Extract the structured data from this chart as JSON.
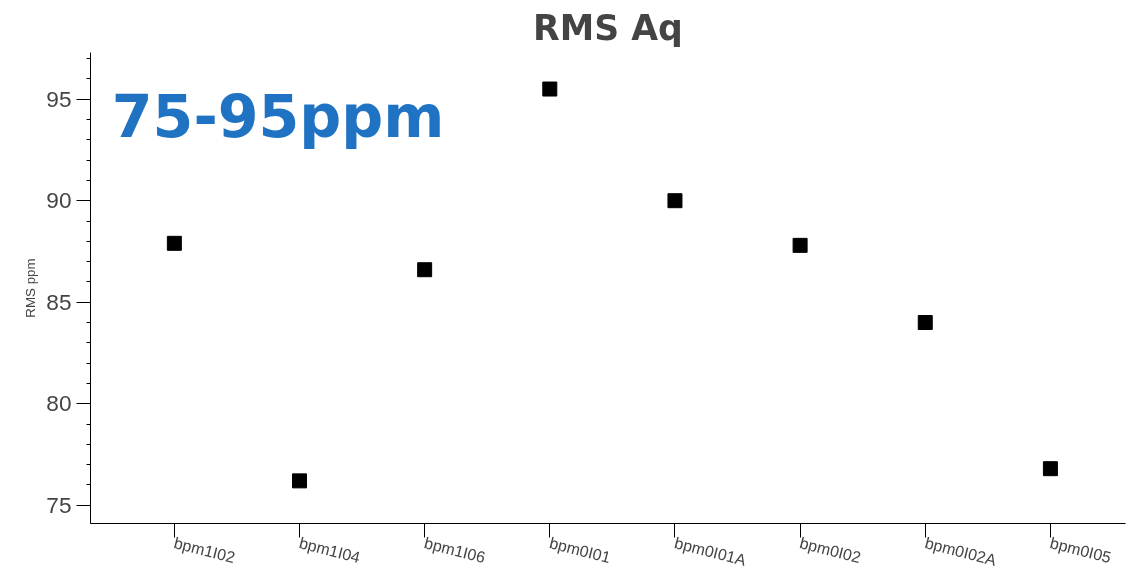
{
  "chart_data": {
    "type": "scatter",
    "title": "RMS Aq",
    "ylabel": "RMS ppm",
    "categories": [
      "bpm1I02",
      "bpm1I04",
      "bpm1I06",
      "bpm0I01",
      "bpm0I01A",
      "bpm0I02",
      "bpm0I02A",
      "bpm0I05"
    ],
    "series": [
      {
        "color": "#000000",
        "values": [
          87.9,
          76.2,
          86.6,
          95.5,
          90.0,
          87.8,
          84.0,
          76.8
        ]
      }
    ],
    "ylim": [
      74.1,
      97.3
    ],
    "yticks": [
      75,
      80,
      85,
      90,
      95
    ],
    "annotations": [
      "75-95ppm"
    ],
    "marker": "square",
    "grid": false
  }
}
